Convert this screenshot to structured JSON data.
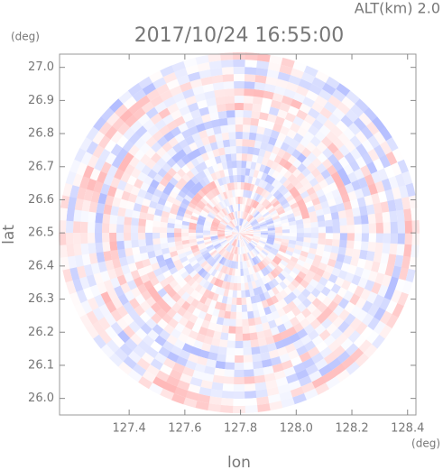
{
  "chart_data": {
    "type": "radar-ppi",
    "title": "2017/10/24 16:55:00",
    "subtitle": "ALT(km) 2.0",
    "xlabel": "lon",
    "ylabel": "lat",
    "xunit": "(deg)",
    "yunit": "(deg)",
    "xlim": [
      127.15,
      128.43
    ],
    "ylim": [
      25.95,
      27.04
    ],
    "xticks": [
      127.4,
      127.6,
      127.8,
      {
        "value": 128.0,
        "label": "128.0"
      },
      128.2,
      128.4
    ],
    "yticks": [
      {
        "value": 26.0,
        "label": "26.0"
      },
      26.1,
      26.2,
      26.3,
      26.4,
      26.5,
      26.6,
      26.7,
      26.8,
      26.9,
      {
        "value": 27.0,
        "label": "27.0"
      }
    ]
  }
}
